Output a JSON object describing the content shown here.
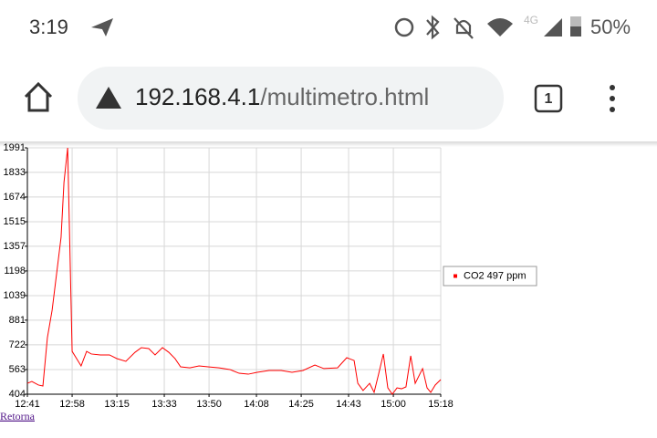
{
  "status_bar": {
    "time": "3:19",
    "network": "4G",
    "battery": "50%"
  },
  "toolbar": {
    "url_host": "192.168.4.1",
    "url_path": "/multimetro.html",
    "tab_count": "1"
  },
  "chart_data": {
    "type": "line",
    "x": [
      761,
      762.7,
      765.2,
      766.9,
      768.6,
      770.4,
      772.1,
      773.8,
      774.9,
      776.3,
      778.0,
      779.7,
      781.4,
      783.5,
      785.3,
      788.7,
      792.2,
      795.0,
      798.4,
      801.9,
      804.3,
      807.1,
      809.5,
      812.3,
      814.7,
      817.1,
      819.2,
      822.7,
      826.2,
      829.6,
      833.8,
      837.9,
      841.4,
      844.9,
      848.3,
      852.8,
      857.4,
      861.5,
      865.7,
      870.2,
      873.6,
      878.8,
      882.3,
      885.1,
      886.5,
      888.5,
      891.0,
      892.7,
      894.4,
      896.2,
      897.9,
      899.6,
      901.4,
      903.1,
      904.8,
      906.6,
      908.3,
      911.1,
      912.8,
      914.2,
      915.9,
      918.0
    ],
    "series": [
      {
        "name": "CO2 497 ppm",
        "color": "#ff0000",
        "values": [
          474,
          486,
          463,
          457,
          768,
          945,
          1180,
          1415,
          1768,
          1991,
          680,
          633,
          586,
          680,
          663,
          657,
          657,
          633,
          616,
          674,
          704,
          698,
          657,
          704,
          674,
          633,
          580,
          574,
          586,
          580,
          574,
          563,
          539,
          533,
          545,
          557,
          557,
          545,
          557,
          592,
          569,
          574,
          639,
          621,
          474,
          428,
          474,
          416,
          533,
          663,
          445,
          404,
          445,
          439,
          451,
          651,
          474,
          569,
          445,
          416,
          463,
          498
        ]
      }
    ],
    "xlim": [
      761,
      918
    ],
    "xticks": [
      {
        "value": 761,
        "label": "12:41"
      },
      {
        "value": 778,
        "label": "12:58"
      },
      {
        "value": 795,
        "label": "13:15"
      },
      {
        "value": 813,
        "label": "13:33"
      },
      {
        "value": 830,
        "label": "13:50"
      },
      {
        "value": 848,
        "label": "14:08"
      },
      {
        "value": 865,
        "label": "14:25"
      },
      {
        "value": 883,
        "label": "14:43"
      },
      {
        "value": 900,
        "label": "15:00"
      },
      {
        "value": 918,
        "label": "15:18"
      }
    ],
    "ylim": [
      404,
      1991
    ],
    "yticks": [
      404,
      563,
      722,
      881,
      1039,
      1198,
      1357,
      1515,
      1674,
      1833,
      1991
    ],
    "grid": true,
    "legend": "right"
  },
  "link": "Retorna"
}
